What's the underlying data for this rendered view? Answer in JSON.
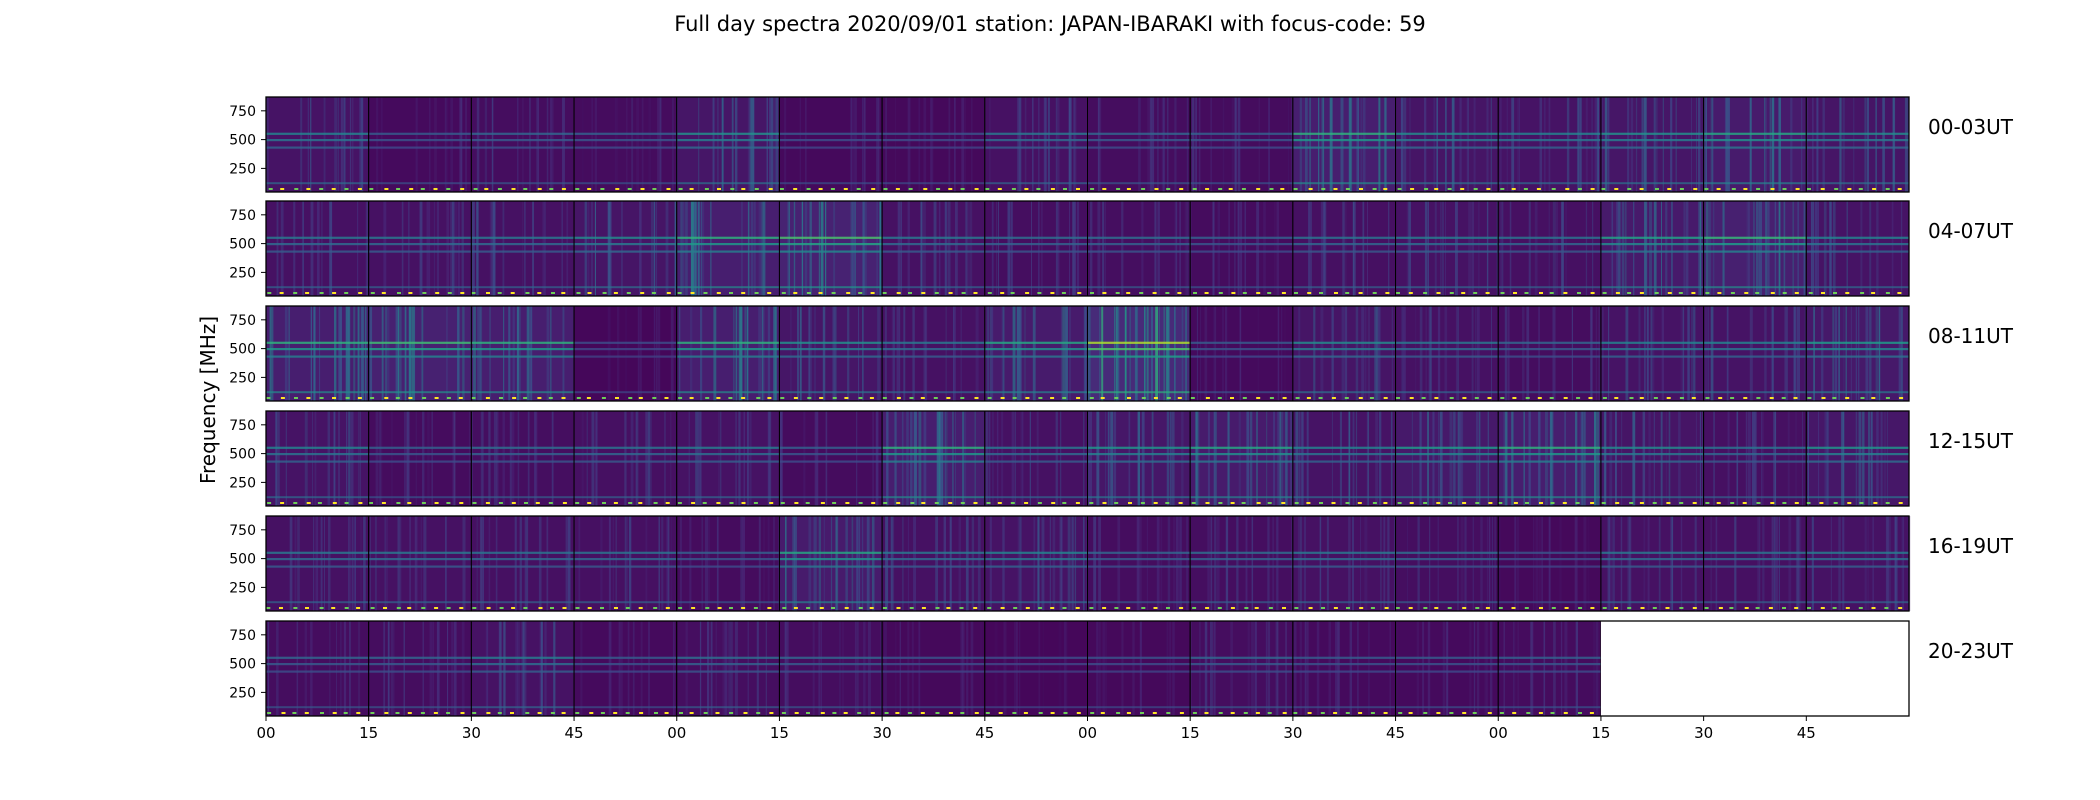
{
  "chart_data": {
    "type": "heatmap",
    "title": "Full day spectra 2020/09/01 station: JAPAN-IBARAKI with focus-code: 59",
    "ylabel": "Frequency [MHz]",
    "y_ticks": [
      "750",
      "500",
      "250"
    ],
    "y_tick_values": [
      750,
      500,
      250
    ],
    "ylim": [
      45,
      870
    ],
    "x_ticks": [
      "00",
      "15",
      "30",
      "45",
      "00",
      "15",
      "30",
      "45",
      "00",
      "15",
      "30",
      "45",
      "00",
      "15",
      "30",
      "45"
    ],
    "colormap": "viridis",
    "colors": [
      "#440154",
      "#482878",
      "#3e4989",
      "#31688e",
      "#26828e",
      "#1f9e89",
      "#35b779",
      "#6ece58",
      "#b5de2b",
      "#fde725"
    ],
    "rows": [
      {
        "label": "00-03UT",
        "panels": [
          0.35,
          0.18,
          0.22,
          0.2,
          0.4,
          0.16,
          0.15,
          0.3,
          0.22,
          0.2,
          0.55,
          0.38,
          0.35,
          0.4,
          0.5,
          0.38
        ]
      },
      {
        "label": "04-07UT",
        "panels": [
          0.3,
          0.3,
          0.3,
          0.38,
          0.55,
          0.62,
          0.3,
          0.25,
          0.25,
          0.2,
          0.28,
          0.32,
          0.28,
          0.48,
          0.58,
          0.35
        ]
      },
      {
        "label": "08-11UT",
        "panels": [
          0.55,
          0.6,
          0.55,
          0.12,
          0.55,
          0.4,
          0.3,
          0.5,
          0.8,
          0.18,
          0.38,
          0.3,
          0.22,
          0.35,
          0.35,
          0.45
        ]
      },
      {
        "label": "12-15UT",
        "panels": [
          0.35,
          0.2,
          0.25,
          0.28,
          0.32,
          0.2,
          0.55,
          0.3,
          0.42,
          0.5,
          0.35,
          0.45,
          0.55,
          0.38,
          0.28,
          0.42
        ]
      },
      {
        "label": "16-19UT",
        "panels": [
          0.3,
          0.3,
          0.28,
          0.28,
          0.2,
          0.5,
          0.3,
          0.35,
          0.22,
          0.25,
          0.3,
          0.25,
          0.15,
          0.3,
          0.28,
          0.32
        ]
      },
      {
        "label": "20-23UT",
        "panels": [
          0.22,
          0.22,
          0.32,
          0.18,
          0.25,
          0.22,
          0.15,
          0.12,
          0.15,
          0.22,
          0.18,
          0.18,
          0.2,
          null,
          null,
          null
        ]
      }
    ]
  }
}
